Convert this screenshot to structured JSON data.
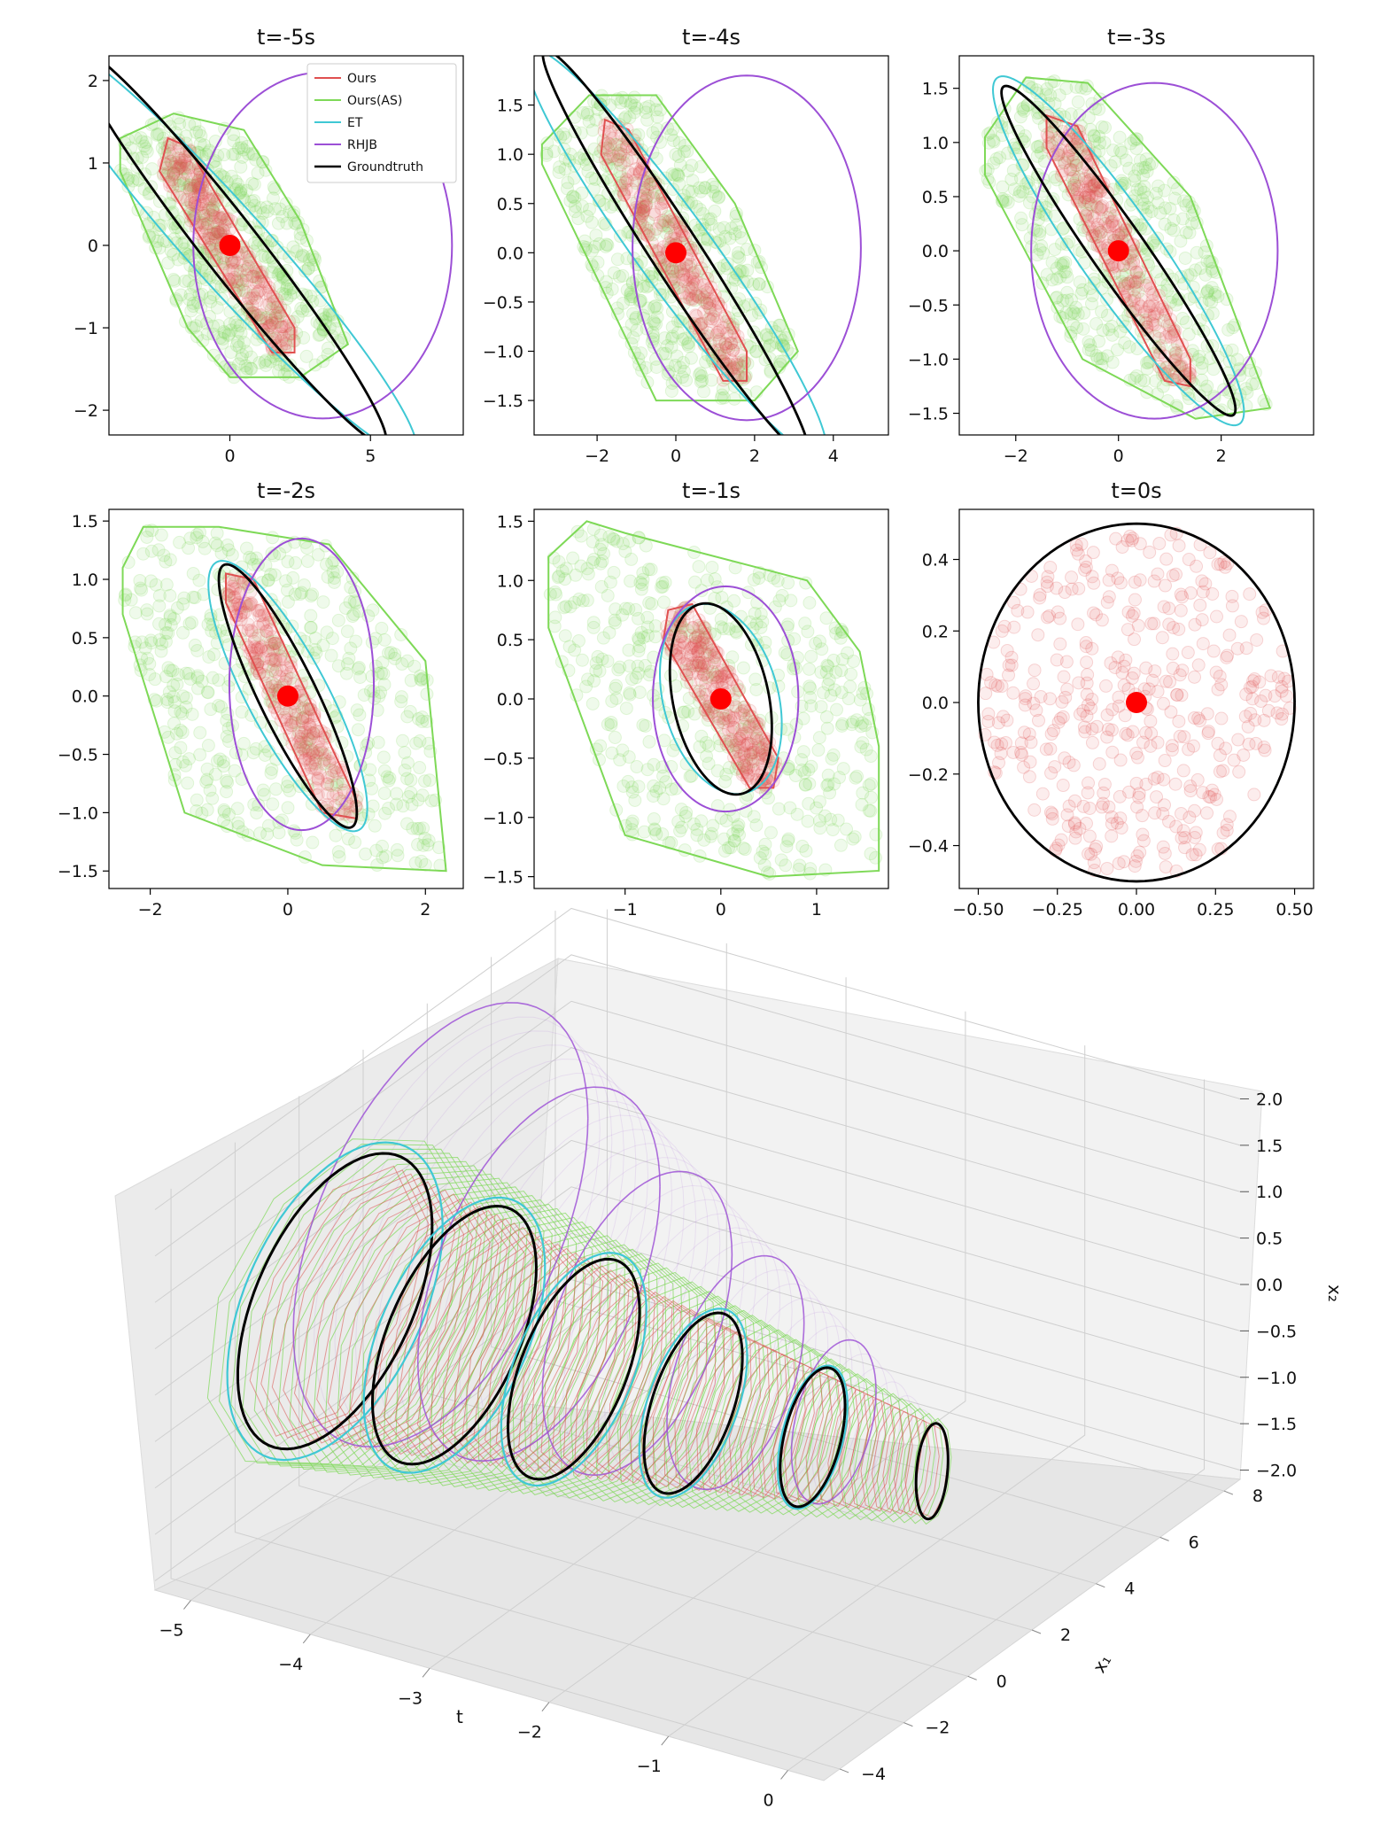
{
  "chart_data": [
    {
      "type": "scatter",
      "title": "t=-5s",
      "xlim": [
        -4.3,
        8.3
      ],
      "ylim": [
        -2.3,
        2.3
      ],
      "xticks": [
        0,
        5
      ],
      "yticks": [
        -2,
        -1,
        0,
        1,
        2
      ],
      "center": [
        0,
        0
      ],
      "samples": 520,
      "legend": {
        "position": "upper-right",
        "entries": [
          "Ours",
          "Ours(AS)",
          "ET",
          "RHJB",
          "Groundtruth"
        ]
      },
      "series": [
        {
          "name": "Ours",
          "color": "#e05050",
          "polygon": [
            [
              -2.2,
              1.3
            ],
            [
              -1.5,
              1.2
            ],
            [
              2.3,
              -1.0
            ],
            [
              2.3,
              -1.3
            ],
            [
              1.5,
              -1.3
            ],
            [
              -2.5,
              0.9
            ]
          ]
        },
        {
          "name": "Ours(AS)",
          "color": "#7ed957",
          "polygon": [
            [
              -3.9,
              1.3
            ],
            [
              -2,
              1.6
            ],
            [
              0.5,
              1.4
            ],
            [
              2.5,
              0.3
            ],
            [
              4.2,
              -1.2
            ],
            [
              2.5,
              -1.6
            ],
            [
              0,
              -1.6
            ],
            [
              -1.5,
              -1.0
            ],
            [
              -3.9,
              0.9
            ]
          ]
        },
        {
          "name": "ET",
          "color": "#3fc8d4",
          "ellipse": {
            "cx": -0.1,
            "cy": 0,
            "rx": 1.4,
            "ry": 3.4,
            "angle": -42
          }
        },
        {
          "name": "RHJB",
          "color": "#9c4fd6",
          "ellipse": {
            "cx": 3.3,
            "cy": 0,
            "rx": 4.6,
            "ry": 2.1,
            "angle": 0
          }
        },
        {
          "name": "Groundtruth",
          "color": "#000000",
          "ellipse": {
            "cx": 0,
            "cy": 0,
            "rx": 1.0,
            "ry": 3.05,
            "angle": -38
          }
        }
      ]
    },
    {
      "type": "scatter",
      "title": "t=-4s",
      "xlim": [
        -3.6,
        5.4
      ],
      "ylim": [
        -1.85,
        2.0
      ],
      "xticks": [
        -2,
        0,
        2,
        4
      ],
      "yticks": [
        -1.5,
        -1.0,
        -0.5,
        0.0,
        0.5,
        1.0,
        1.5
      ],
      "center": [
        0,
        0
      ],
      "samples": 520,
      "series": [
        {
          "name": "Ours",
          "color": "#e05050",
          "polygon": [
            [
              -1.8,
              1.35
            ],
            [
              -1.2,
              1.25
            ],
            [
              1.8,
              -1.0
            ],
            [
              1.8,
              -1.3
            ],
            [
              1.2,
              -1.3
            ],
            [
              -1.9,
              1.0
            ]
          ]
        },
        {
          "name": "Ours(AS)",
          "color": "#7ed957",
          "polygon": [
            [
              -3.4,
              1.1
            ],
            [
              -2.2,
              1.6
            ],
            [
              -0.5,
              1.6
            ],
            [
              1.5,
              0.5
            ],
            [
              3.1,
              -1.0
            ],
            [
              2.0,
              -1.5
            ],
            [
              -0.5,
              -1.5
            ],
            [
              -3.4,
              0.9
            ]
          ]
        },
        {
          "name": "ET",
          "color": "#3fc8d4",
          "ellipse": {
            "cx": 0,
            "cy": 0,
            "rx": 0.95,
            "ry": 2.55,
            "angle": -36
          }
        },
        {
          "name": "RHJB",
          "color": "#9c4fd6",
          "ellipse": {
            "cx": 1.8,
            "cy": 0.05,
            "rx": 2.9,
            "ry": 1.75,
            "angle": 0
          }
        },
        {
          "name": "Groundtruth",
          "color": "#000000",
          "ellipse": {
            "cx": 0,
            "cy": 0,
            "rx": 0.62,
            "ry": 2.45,
            "angle": -33
          }
        }
      ]
    },
    {
      "type": "scatter",
      "title": "t=-3s",
      "xlim": [
        -3.1,
        3.8
      ],
      "ylim": [
        -1.7,
        1.8
      ],
      "xticks": [
        -2,
        0,
        2
      ],
      "yticks": [
        -1.5,
        -1.0,
        -0.5,
        0.0,
        0.5,
        1.0,
        1.5
      ],
      "center": [
        0,
        0
      ],
      "samples": 520,
      "series": [
        {
          "name": "Ours",
          "color": "#e05050",
          "polygon": [
            [
              -1.4,
              1.25
            ],
            [
              -0.8,
              1.15
            ],
            [
              1.4,
              -1.0
            ],
            [
              1.4,
              -1.25
            ],
            [
              0.9,
              -1.2
            ],
            [
              -1.4,
              0.95
            ]
          ]
        },
        {
          "name": "Ours(AS)",
          "color": "#7ed957",
          "polygon": [
            [
              -2.6,
              1.05
            ],
            [
              -1.8,
              1.6
            ],
            [
              -0.6,
              1.55
            ],
            [
              1.4,
              0.5
            ],
            [
              2.95,
              -1.45
            ],
            [
              1.5,
              -1.55
            ],
            [
              -0.7,
              -1.0
            ],
            [
              -2.6,
              0.7
            ]
          ]
        },
        {
          "name": "ET",
          "color": "#3fc8d4",
          "ellipse": {
            "cx": 0,
            "cy": 0,
            "rx": 0.78,
            "ry": 1.95,
            "angle": -35
          }
        },
        {
          "name": "RHJB",
          "color": "#9c4fd6",
          "ellipse": {
            "cx": 0.7,
            "cy": 0,
            "rx": 2.4,
            "ry": 1.55,
            "angle": 0
          }
        },
        {
          "name": "Groundtruth",
          "color": "#000000",
          "ellipse": {
            "cx": 0,
            "cy": 0,
            "rx": 0.52,
            "ry": 1.85,
            "angle": -35
          }
        }
      ]
    },
    {
      "type": "scatter",
      "title": "t=-2s",
      "xlim": [
        -2.6,
        2.55
      ],
      "ylim": [
        -1.65,
        1.6
      ],
      "xticks": [
        -2,
        0,
        2
      ],
      "yticks": [
        -1.5,
        -1.0,
        -0.5,
        0.0,
        0.5,
        1.0,
        1.5
      ],
      "center": [
        0,
        0
      ],
      "samples": 520,
      "series": [
        {
          "name": "Ours",
          "color": "#e05050",
          "polygon": [
            [
              -0.9,
              1.05
            ],
            [
              -0.5,
              1.0
            ],
            [
              1.0,
              -0.9
            ],
            [
              1.0,
              -1.05
            ],
            [
              0.5,
              -1.0
            ],
            [
              -0.9,
              0.8
            ]
          ]
        },
        {
          "name": "Ours(AS)",
          "color": "#7ed957",
          "polygon": [
            [
              -2.4,
              1.1
            ],
            [
              -2.1,
              1.45
            ],
            [
              -1.0,
              1.45
            ],
            [
              0.6,
              1.3
            ],
            [
              2.0,
              0.3
            ],
            [
              2.3,
              -1.5
            ],
            [
              0.5,
              -1.45
            ],
            [
              -1.5,
              -1.0
            ],
            [
              -2.4,
              0.7
            ]
          ]
        },
        {
          "name": "ET",
          "color": "#3fc8d4",
          "ellipse": {
            "cx": 0,
            "cy": 0,
            "rx": 0.58,
            "ry": 1.3,
            "angle": -28
          }
        },
        {
          "name": "RHJB",
          "color": "#9c4fd6",
          "ellipse": {
            "cx": 0.2,
            "cy": 0.1,
            "rx": 1.05,
            "ry": 1.25,
            "angle": 0
          }
        },
        {
          "name": "Groundtruth",
          "color": "#000000",
          "ellipse": {
            "cx": 0,
            "cy": 0,
            "rx": 0.42,
            "ry": 1.25,
            "angle": -26
          }
        }
      ]
    },
    {
      "type": "scatter",
      "title": "t=-1s",
      "xlim": [
        -1.95,
        1.75
      ],
      "ylim": [
        -1.6,
        1.6
      ],
      "xticks": [
        -1,
        0,
        1
      ],
      "yticks": [
        -1.5,
        -1.0,
        -0.5,
        0.0,
        0.5,
        1.0,
        1.5
      ],
      "center": [
        0,
        0
      ],
      "samples": 520,
      "series": [
        {
          "name": "Ours",
          "color": "#e05050",
          "polygon": [
            [
              -0.55,
              0.75
            ],
            [
              -0.3,
              0.8
            ],
            [
              0.6,
              -0.5
            ],
            [
              0.55,
              -0.75
            ],
            [
              0.3,
              -0.75
            ],
            [
              -0.6,
              0.5
            ]
          ]
        },
        {
          "name": "Ours(AS)",
          "color": "#7ed957",
          "polygon": [
            [
              -1.8,
              1.2
            ],
            [
              -1.4,
              1.5
            ],
            [
              -1.0,
              1.4
            ],
            [
              0.9,
              1.0
            ],
            [
              1.45,
              0.4
            ],
            [
              1.65,
              -0.4
            ],
            [
              1.65,
              -1.45
            ],
            [
              0.5,
              -1.5
            ],
            [
              -1.0,
              -1.15
            ],
            [
              -1.8,
              0.6
            ]
          ]
        },
        {
          "name": "ET",
          "color": "#3fc8d4",
          "ellipse": {
            "cx": 0,
            "cy": 0,
            "rx": 0.6,
            "ry": 0.82,
            "angle": -15
          }
        },
        {
          "name": "RHJB",
          "color": "#9c4fd6",
          "ellipse": {
            "cx": 0.05,
            "cy": 0.0,
            "rx": 0.76,
            "ry": 0.95,
            "angle": 0
          }
        },
        {
          "name": "Groundtruth",
          "color": "#000000",
          "ellipse": {
            "cx": 0,
            "cy": 0,
            "rx": 0.5,
            "ry": 0.82,
            "angle": -12
          }
        }
      ]
    },
    {
      "type": "scatter",
      "title": "t=0s",
      "xlim": [
        -0.56,
        0.56
      ],
      "ylim": [
        -0.52,
        0.54
      ],
      "xticks": [
        -0.5,
        -0.25,
        0.0,
        0.25,
        0.5
      ],
      "yticks": [
        -0.4,
        -0.2,
        0.0,
        0.2,
        0.4
      ],
      "center": [
        0,
        0
      ],
      "samples": 420,
      "series": [
        {
          "name": "Ours",
          "color": "#e05050",
          "ellipse": {
            "cx": 0,
            "cy": 0,
            "rx": 0.5,
            "ry": 0.5,
            "angle": 0
          }
        },
        {
          "name": "RHJB",
          "color": "#9c4fd6",
          "ellipse": {
            "cx": 0,
            "cy": 0,
            "rx": 0.5,
            "ry": 0.5,
            "angle": 0
          }
        },
        {
          "name": "Groundtruth",
          "color": "#000000",
          "ellipse": {
            "cx": 0,
            "cy": 0,
            "rx": 0.5,
            "ry": 0.5,
            "angle": 0
          }
        }
      ]
    },
    {
      "type": "line",
      "projection": "3d",
      "xlabel": "t",
      "ylabel": "x₁",
      "zlabel": "x₂",
      "t_ticks": [
        "−5",
        "−4",
        "−3",
        "−2",
        "−1",
        "0"
      ],
      "x1_ticks": [
        "−4",
        "−2",
        "0",
        "2",
        "4",
        "6",
        "8"
      ],
      "x2_ticks": [
        "−2.0",
        "−1.5",
        "−1.0",
        "−0.5",
        "0.0",
        "0.5",
        "1.0",
        "1.5",
        "2.0"
      ],
      "grid": true,
      "slices_t": [
        -5,
        -4,
        -3,
        -2,
        -1,
        0
      ]
    }
  ]
}
